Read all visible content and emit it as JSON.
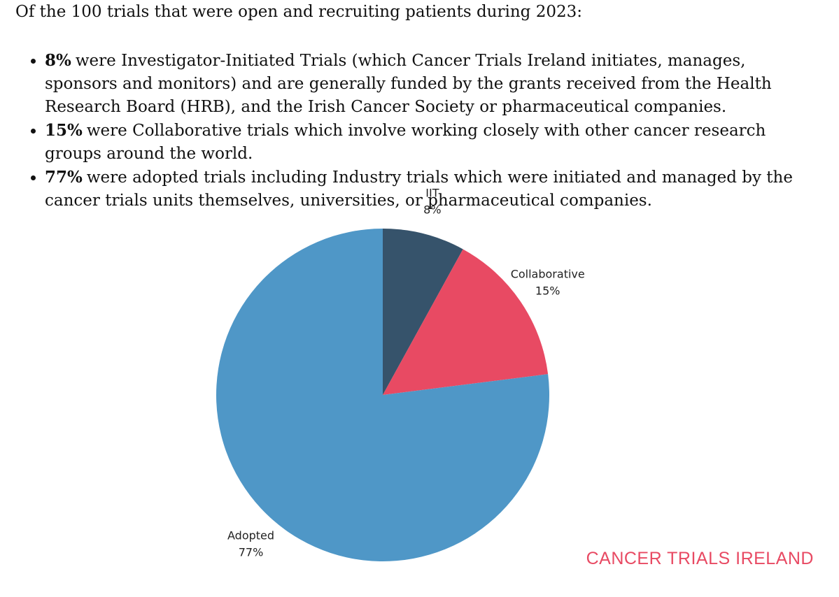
{
  "intro": "Of the 100 trials that were open and recruiting patients during 2023:",
  "bullets": [
    {
      "bold": "8%",
      "text": "were Investigator-Initiated Trials (which Cancer Trials Ireland initiates, manages, sponsors and monitors) and are generally funded by the grants received from the Health Research Board (HRB), and the Irish Cancer Society or pharmaceutical companies."
    },
    {
      "bold": "15%",
      "text": "were Collaborative trials which involve working closely with other cancer research groups around the world."
    },
    {
      "bold": "77%",
      "text": "were adopted trials including Industry trials which were initiated and managed by the cancer trials units themselves, universities, or pharmaceutical companies."
    }
  ],
  "chart_data": {
    "type": "pie",
    "categories": [
      "IIT",
      "Collaborative",
      "Adopted"
    ],
    "values": [
      8,
      15,
      77
    ],
    "value_labels": [
      "8%",
      "15%",
      "77%"
    ],
    "colors": [
      "#36536b",
      "#e84a63",
      "#4f97c7"
    ]
  },
  "brand": "CANCER TRIALS IRELAND"
}
